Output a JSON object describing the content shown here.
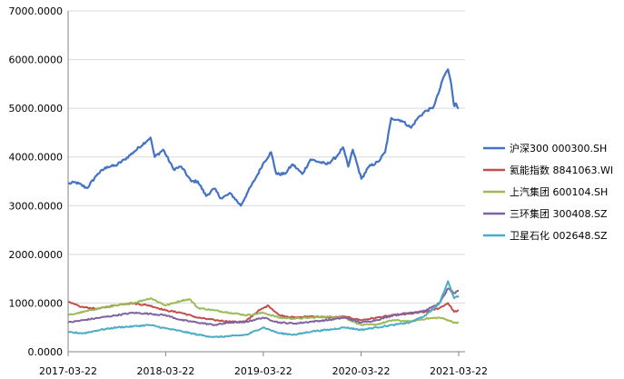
{
  "chart_data": {
    "type": "line",
    "title": "",
    "xlabel": "",
    "ylabel": "",
    "ylim": [
      0,
      7000
    ],
    "y_ticks": [
      "0.0000",
      "1000.0000",
      "2000.0000",
      "3000.0000",
      "4000.0000",
      "5000.0000",
      "6000.0000",
      "7000.0000"
    ],
    "x_tick_labels": [
      "2017-03-22",
      "2018-03-22",
      "2019-03-22",
      "2020-03-22",
      "2021-03-22"
    ],
    "x_range": [
      "2017-03-22",
      "2021-03-22"
    ],
    "grid": "horizontal",
    "legend_position": "right",
    "series": [
      {
        "name": "沪深300 000300.SH",
        "color": "#4472C4",
        "points": [
          [
            "2017-03-22",
            3450
          ],
          [
            "2017-04-20",
            3480
          ],
          [
            "2017-06-01",
            3360
          ],
          [
            "2017-07-10",
            3650
          ],
          [
            "2017-08-15",
            3800
          ],
          [
            "2017-09-15",
            3820
          ],
          [
            "2017-10-20",
            3950
          ],
          [
            "2017-11-22",
            4100
          ],
          [
            "2018-01-24",
            4400
          ],
          [
            "2018-02-09",
            4000
          ],
          [
            "2018-03-13",
            4150
          ],
          [
            "2018-04-20",
            3750
          ],
          [
            "2018-05-20",
            3800
          ],
          [
            "2018-06-25",
            3500
          ],
          [
            "2018-07-20",
            3500
          ],
          [
            "2018-08-20",
            3200
          ],
          [
            "2018-09-20",
            3350
          ],
          [
            "2018-10-15",
            3150
          ],
          [
            "2018-11-20",
            3250
          ],
          [
            "2018-12-28",
            3000
          ],
          [
            "2019-01-20",
            3250
          ],
          [
            "2019-02-25",
            3600
          ],
          [
            "2019-03-20",
            3850
          ],
          [
            "2019-04-20",
            4100
          ],
          [
            "2019-05-10",
            3650
          ],
          [
            "2019-06-10",
            3650
          ],
          [
            "2019-07-10",
            3850
          ],
          [
            "2019-08-15",
            3650
          ],
          [
            "2019-09-15",
            3950
          ],
          [
            "2019-10-15",
            3900
          ],
          [
            "2019-11-15",
            3850
          ],
          [
            "2019-12-20",
            4000
          ],
          [
            "2020-01-14",
            4200
          ],
          [
            "2020-02-03",
            3800
          ],
          [
            "2020-02-20",
            4150
          ],
          [
            "2020-03-23",
            3550
          ],
          [
            "2020-04-20",
            3800
          ],
          [
            "2020-05-25",
            3900
          ],
          [
            "2020-06-20",
            4100
          ],
          [
            "2020-07-13",
            4800
          ],
          [
            "2020-08-20",
            4750
          ],
          [
            "2020-09-25",
            4600
          ],
          [
            "2020-10-20",
            4800
          ],
          [
            "2020-11-20",
            4950
          ],
          [
            "2020-12-15",
            5000
          ],
          [
            "2021-01-05",
            5300
          ],
          [
            "2021-01-25",
            5650
          ],
          [
            "2021-02-10",
            5800
          ],
          [
            "2021-02-22",
            5500
          ],
          [
            "2021-03-05",
            5050
          ],
          [
            "2021-03-12",
            5100
          ],
          [
            "2021-03-22",
            5000
          ]
        ]
      },
      {
        "name": "氦能指数 8841063.WI",
        "color": "#C0504D",
        "points": [
          [
            "2017-03-22",
            1020
          ],
          [
            "2017-05-10",
            920
          ],
          [
            "2017-07-10",
            880
          ],
          [
            "2017-09-10",
            950
          ],
          [
            "2017-11-10",
            1000
          ],
          [
            "2018-01-20",
            950
          ],
          [
            "2018-03-22",
            850
          ],
          [
            "2018-05-20",
            800
          ],
          [
            "2018-07-20",
            700
          ],
          [
            "2018-09-20",
            650
          ],
          [
            "2018-11-20",
            620
          ],
          [
            "2019-01-10",
            600
          ],
          [
            "2019-03-01",
            830
          ],
          [
            "2019-04-10",
            950
          ],
          [
            "2019-05-20",
            750
          ],
          [
            "2019-07-20",
            700
          ],
          [
            "2019-09-20",
            730
          ],
          [
            "2019-11-20",
            700
          ],
          [
            "2020-01-20",
            720
          ],
          [
            "2020-03-22",
            650
          ],
          [
            "2020-05-20",
            700
          ],
          [
            "2020-07-20",
            750
          ],
          [
            "2020-09-20",
            780
          ],
          [
            "2020-11-20",
            820
          ],
          [
            "2021-01-10",
            900
          ],
          [
            "2021-02-10",
            1000
          ],
          [
            "2021-03-05",
            820
          ],
          [
            "2021-03-22",
            850
          ]
        ]
      },
      {
        "name": "上汽集团 600104.SH",
        "color": "#9BBB59",
        "points": [
          [
            "2017-03-22",
            750
          ],
          [
            "2017-05-20",
            820
          ],
          [
            "2017-07-20",
            900
          ],
          [
            "2017-09-20",
            950
          ],
          [
            "2017-11-20",
            1000
          ],
          [
            "2018-01-25",
            1100
          ],
          [
            "2018-03-22",
            950
          ],
          [
            "2018-05-20",
            1050
          ],
          [
            "2018-06-20",
            1080
          ],
          [
            "2018-07-20",
            900
          ],
          [
            "2018-09-20",
            850
          ],
          [
            "2018-11-20",
            800
          ],
          [
            "2019-01-20",
            750
          ],
          [
            "2019-03-22",
            800
          ],
          [
            "2019-05-20",
            700
          ],
          [
            "2019-07-20",
            680
          ],
          [
            "2019-09-20",
            700
          ],
          [
            "2019-11-20",
            720
          ],
          [
            "2020-01-20",
            700
          ],
          [
            "2020-03-22",
            550
          ],
          [
            "2020-05-20",
            560
          ],
          [
            "2020-07-20",
            650
          ],
          [
            "2020-09-20",
            620
          ],
          [
            "2020-11-20",
            680
          ],
          [
            "2021-01-10",
            700
          ],
          [
            "2021-02-10",
            650
          ],
          [
            "2021-03-05",
            600
          ],
          [
            "2021-03-22",
            600
          ]
        ]
      },
      {
        "name": "三环集团 300408.SZ",
        "color": "#8064A2",
        "points": [
          [
            "2017-03-22",
            600
          ],
          [
            "2017-05-20",
            650
          ],
          [
            "2017-07-20",
            700
          ],
          [
            "2017-09-20",
            750
          ],
          [
            "2017-11-20",
            800
          ],
          [
            "2018-01-20",
            780
          ],
          [
            "2018-03-22",
            750
          ],
          [
            "2018-05-20",
            650
          ],
          [
            "2018-07-20",
            600
          ],
          [
            "2018-09-20",
            550
          ],
          [
            "2018-11-20",
            600
          ],
          [
            "2019-01-20",
            620
          ],
          [
            "2019-03-22",
            700
          ],
          [
            "2019-05-20",
            600
          ],
          [
            "2019-07-20",
            580
          ],
          [
            "2019-09-20",
            620
          ],
          [
            "2019-11-20",
            650
          ],
          [
            "2020-01-20",
            700
          ],
          [
            "2020-03-22",
            600
          ],
          [
            "2020-05-20",
            650
          ],
          [
            "2020-07-20",
            750
          ],
          [
            "2020-09-20",
            800
          ],
          [
            "2020-11-20",
            850
          ],
          [
            "2021-01-10",
            1000
          ],
          [
            "2021-02-10",
            1300
          ],
          [
            "2021-03-05",
            1200
          ],
          [
            "2021-03-22",
            1250
          ]
        ]
      },
      {
        "name": "卫星石化 002648.SZ",
        "color": "#4BACC6",
        "points": [
          [
            "2017-03-22",
            400
          ],
          [
            "2017-05-20",
            380
          ],
          [
            "2017-07-20",
            450
          ],
          [
            "2017-09-20",
            500
          ],
          [
            "2017-11-20",
            520
          ],
          [
            "2018-01-20",
            550
          ],
          [
            "2018-03-22",
            480
          ],
          [
            "2018-05-20",
            420
          ],
          [
            "2018-07-20",
            350
          ],
          [
            "2018-09-20",
            300
          ],
          [
            "2018-11-20",
            320
          ],
          [
            "2019-01-20",
            350
          ],
          [
            "2019-03-22",
            500
          ],
          [
            "2019-05-20",
            380
          ],
          [
            "2019-07-20",
            350
          ],
          [
            "2019-09-20",
            420
          ],
          [
            "2019-11-20",
            450
          ],
          [
            "2020-01-20",
            500
          ],
          [
            "2020-03-22",
            450
          ],
          [
            "2020-05-20",
            500
          ],
          [
            "2020-07-20",
            550
          ],
          [
            "2020-09-20",
            600
          ],
          [
            "2020-11-20",
            750
          ],
          [
            "2021-01-10",
            1000
          ],
          [
            "2021-02-10",
            1450
          ],
          [
            "2021-03-05",
            1100
          ],
          [
            "2021-03-22",
            1150
          ]
        ]
      }
    ]
  }
}
